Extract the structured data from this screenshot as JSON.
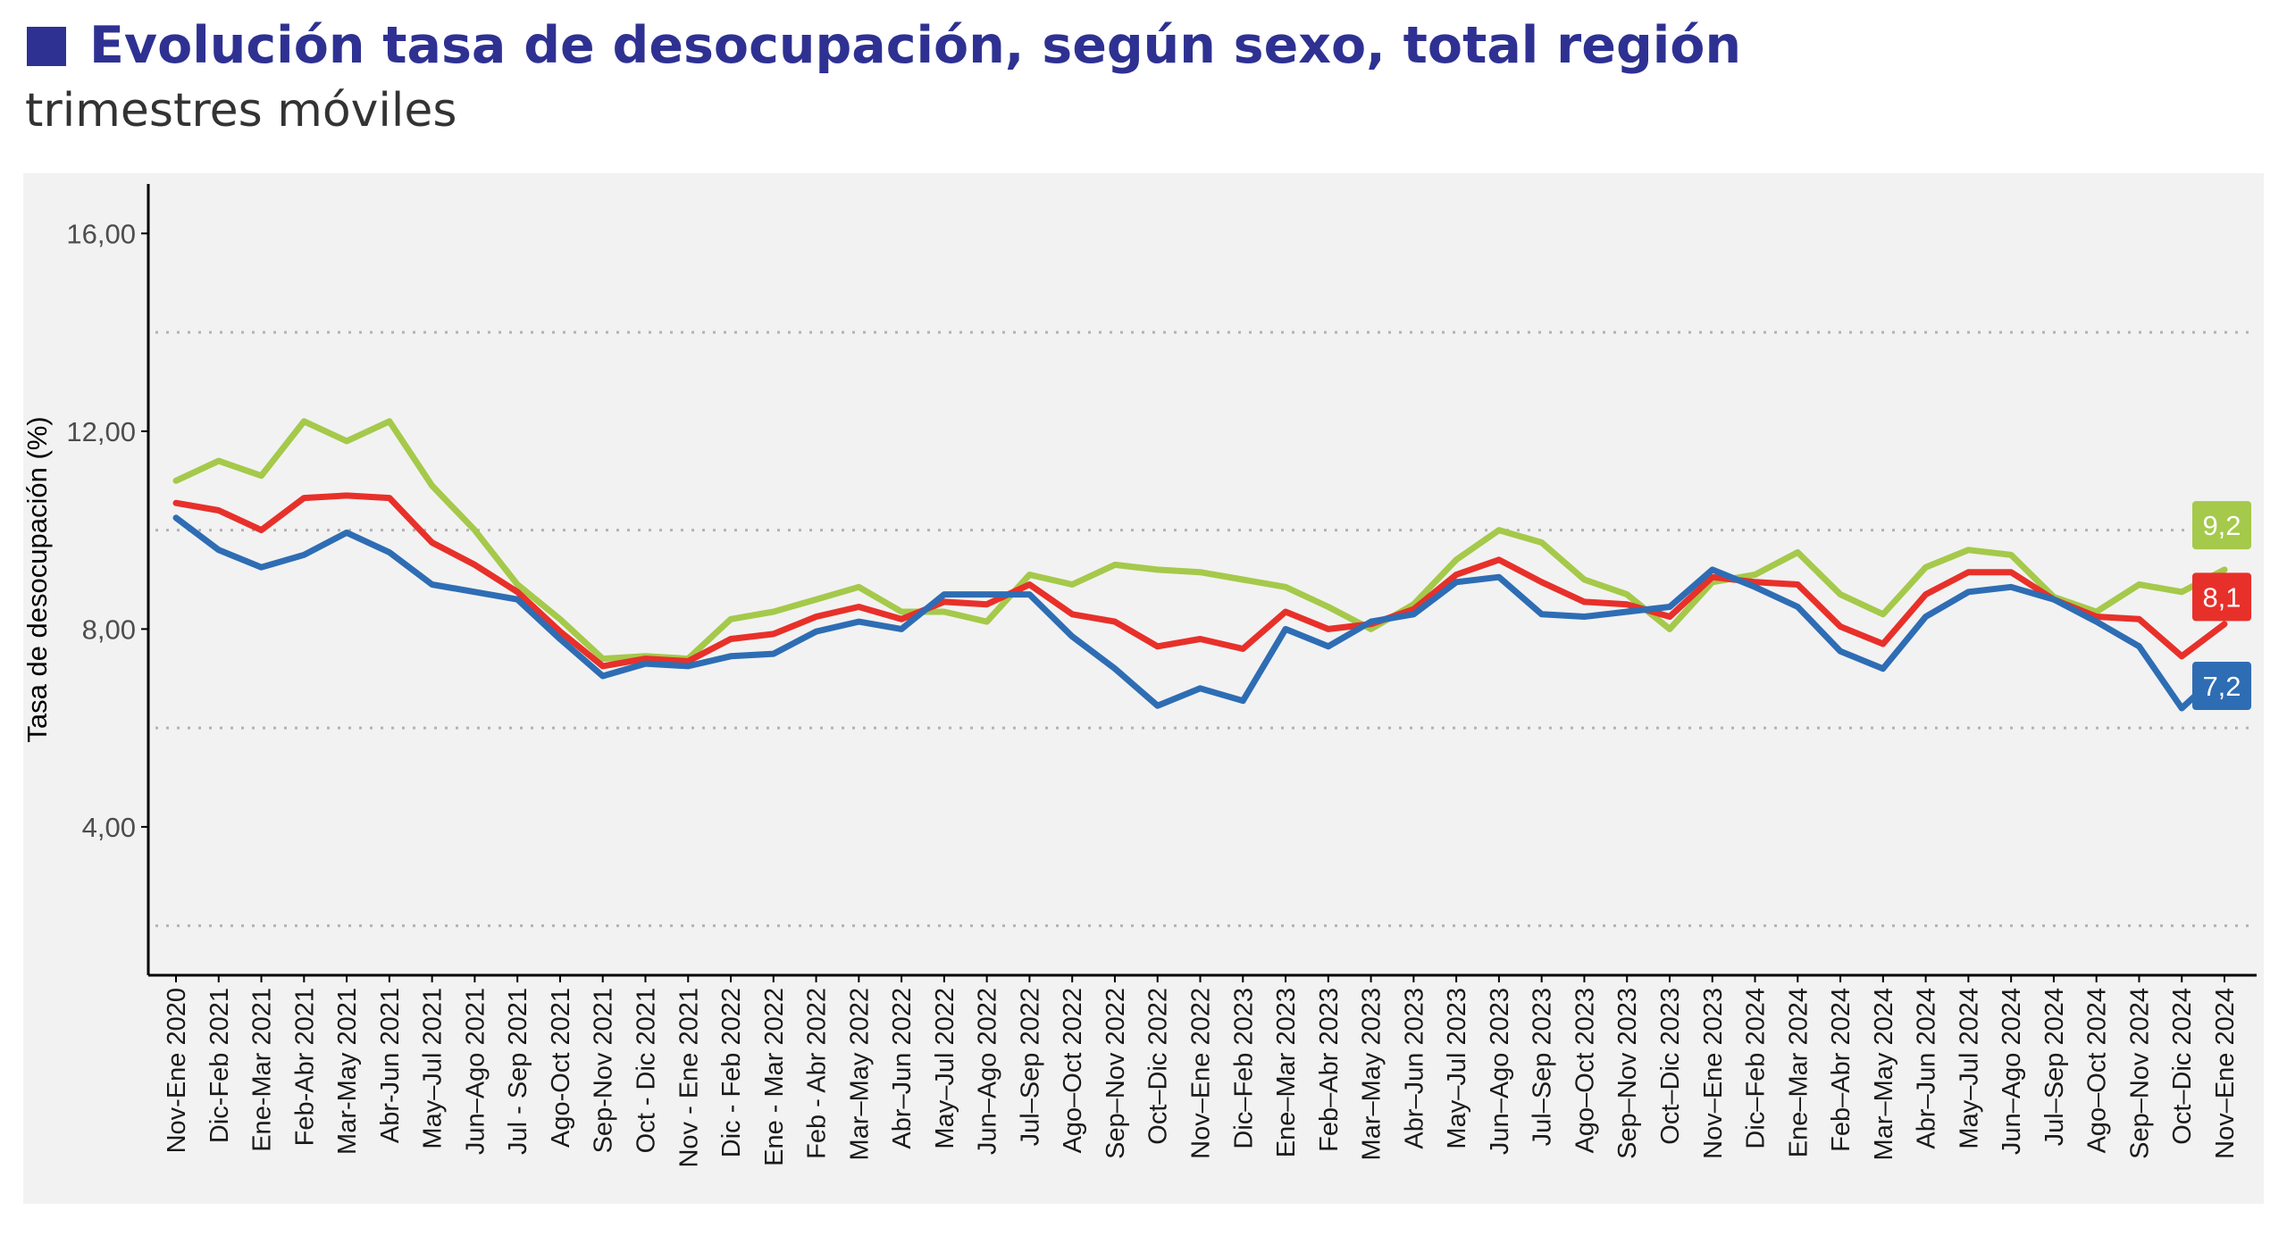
{
  "header": {
    "title": "Evolución tasa de desocupación, según sexo, total región",
    "subtitle": "trimestres móviles",
    "title_color": "#2e3192"
  },
  "chart_data": {
    "type": "line",
    "ylabel": "Tasa de desocupación (%)",
    "ylim": [
      1.0,
      17.0
    ],
    "y_ticks": [
      "4,00",
      "8,00",
      "12,00",
      "16,00"
    ],
    "y_tick_values": [
      4,
      8,
      12,
      16
    ],
    "grid_dotted_values": [
      2,
      6,
      10,
      14
    ],
    "categories": [
      "Nov-Ene 2020",
      "Dic-Feb 2021",
      "Ene-Mar 2021",
      "Feb-Abr 2021",
      "Mar-May 2021",
      "Abr-Jun 2021",
      "May–Jul 2021",
      "Jun–Ago 2021",
      "Jul - Sep 2021",
      "Ago-Oct 2021",
      "Sep-Nov 2021",
      "Oct - Dic 2021",
      "Nov - Ene 2021",
      "Dic - Feb 2022",
      "Ene - Mar 2022",
      "Feb - Abr 2022",
      "Mar–May 2022",
      "Abr–Jun 2022",
      "May–Jul 2022",
      "Jun–Ago 2022",
      "Jul–Sep 2022",
      "Ago–Oct 2022",
      "Sep–Nov 2022",
      "Oct–Dic 2022",
      "Nov–Ene 2022",
      "Dic–Feb 2023",
      "Ene–Mar 2023",
      "Feb–Abr 2023",
      "Mar–May 2023",
      "Abr–Jun 2023",
      "May–Jul 2023",
      "Jun–Ago 2023",
      "Jul–Sep 2023",
      "Ago–Oct 2023",
      "Sep–Nov 2023",
      "Oct–Dic 2023",
      "Nov–Ene 2023",
      "Dic–Feb 2024",
      "Ene–Mar 2024",
      "Feb–Abr 2024",
      "Mar–May 2024",
      "Abr–Jun 2024",
      "May–Jul 2024",
      "Jun–Ago 2024",
      "Jul–Sep 2024",
      "Ago–Oct 2024",
      "Sep–Nov 2024",
      "Oct–Dic 2024",
      "Nov–Ene 2024"
    ],
    "series": [
      {
        "color": "#a5c94a",
        "end_label": "9,2",
        "values": [
          11.0,
          11.4,
          11.1,
          12.2,
          11.8,
          12.2,
          10.9,
          10.0,
          8.9,
          8.2,
          7.4,
          7.45,
          7.4,
          8.2,
          8.35,
          8.6,
          8.85,
          8.35,
          8.35,
          8.15,
          9.1,
          8.9,
          9.3,
          9.2,
          9.15,
          9.0,
          8.85,
          8.45,
          8.0,
          8.5,
          9.4,
          10.0,
          9.75,
          9.0,
          8.7,
          8.0,
          8.95,
          9.1,
          9.55,
          8.7,
          8.3,
          9.25,
          9.6,
          9.5,
          8.65,
          8.35,
          8.9,
          8.75,
          9.2
        ]
      },
      {
        "color": "#e8302a",
        "end_label": "8,1",
        "values": [
          10.55,
          10.4,
          10.0,
          10.65,
          10.7,
          10.65,
          9.75,
          9.3,
          8.75,
          7.95,
          7.25,
          7.4,
          7.35,
          7.8,
          7.9,
          8.25,
          8.45,
          8.2,
          8.55,
          8.5,
          8.9,
          8.3,
          8.15,
          7.65,
          7.8,
          7.6,
          8.35,
          8.0,
          8.1,
          8.4,
          9.1,
          9.4,
          8.95,
          8.55,
          8.5,
          8.25,
          9.05,
          8.95,
          8.9,
          8.05,
          7.7,
          8.7,
          9.15,
          9.15,
          8.6,
          8.25,
          8.2,
          7.45,
          8.1
        ]
      },
      {
        "color": "#2e6db4",
        "end_label": "7,2",
        "values": [
          10.25,
          9.6,
          9.25,
          9.5,
          9.95,
          9.55,
          8.9,
          8.75,
          8.6,
          7.8,
          7.05,
          7.3,
          7.25,
          7.45,
          7.5,
          7.95,
          8.15,
          8.0,
          8.7,
          8.7,
          8.7,
          7.85,
          7.2,
          6.45,
          6.8,
          6.55,
          8.0,
          7.65,
          8.15,
          8.3,
          8.95,
          9.05,
          8.3,
          8.25,
          8.35,
          8.45,
          9.2,
          8.85,
          8.45,
          7.55,
          7.2,
          8.25,
          8.75,
          8.85,
          8.6,
          8.15,
          7.65,
          6.4,
          7.2
        ]
      }
    ]
  }
}
